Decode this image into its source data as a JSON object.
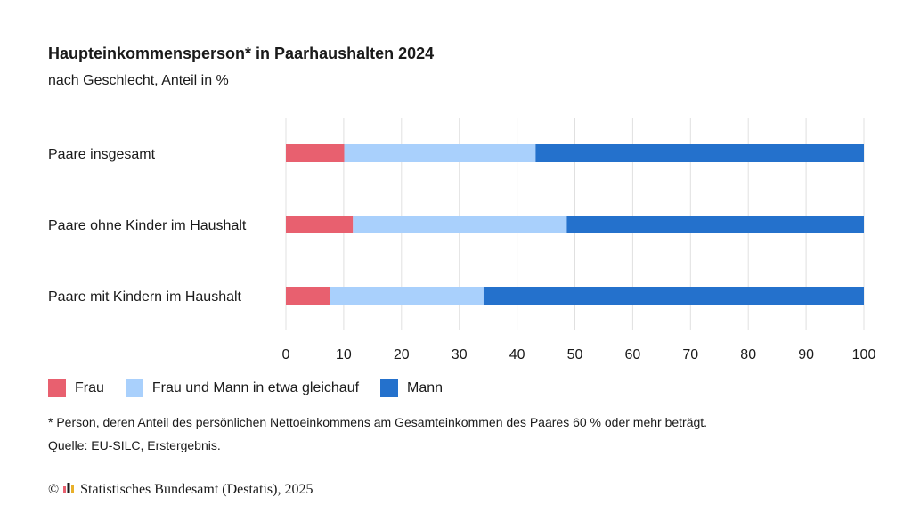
{
  "title": "Haupteinkommensperson* in Paarhaushalten 2024",
  "subtitle": "nach Geschlecht, Anteil in %",
  "footnote": "* Person, deren Anteil des persönlichen Nettoeinkommens am Gesamteinkommen des Paares 60 % oder mehr beträgt.",
  "source": "Quelle: EU-SILC, Erstergebnis.",
  "copyright": {
    "symbol": "©",
    "text": "Statistisches Bundesamt (Destatis), 2025",
    "logo_icon": "destatis-logo-icon"
  },
  "colors": {
    "frau": "#e8606f",
    "gleich": "#a9d0fc",
    "mann": "#2471cc",
    "grid": "#e0e0e0"
  },
  "chart_data": {
    "type": "bar",
    "orientation": "horizontal",
    "stacked": true,
    "categories": [
      "Paare insgesamt",
      "Paare ohne Kinder im Haushalt",
      "Paare mit Kindern im Haushalt"
    ],
    "series": [
      {
        "name": "Frau",
        "values": [
          10.1,
          11.6,
          7.7
        ]
      },
      {
        "name": "Frau und Mann in etwa gleichauf",
        "values": [
          33.1,
          37.0,
          26.5
        ]
      },
      {
        "name": "Mann",
        "values": [
          56.8,
          51.4,
          65.8
        ]
      }
    ],
    "xlim": [
      0,
      100
    ],
    "xticks": [
      0,
      10,
      20,
      30,
      40,
      50,
      60,
      70,
      80,
      90,
      100
    ],
    "grid": true,
    "legend_position": "bottom-left"
  }
}
